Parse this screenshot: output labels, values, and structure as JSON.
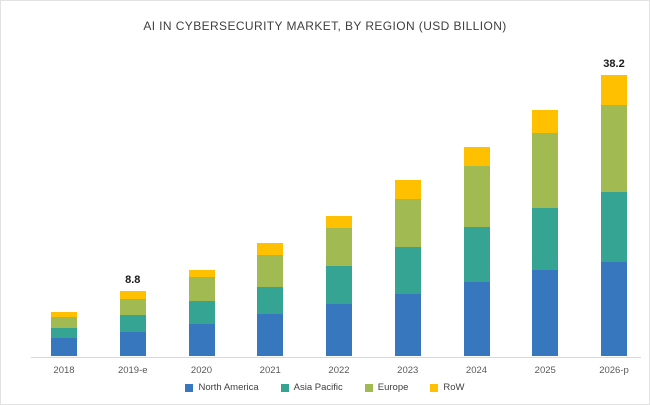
{
  "chart_data": {
    "type": "bar",
    "stacked": true,
    "title": "AI IN CYBERSECURITY MARKET, BY REGION (USD BILLION)",
    "categories": [
      "2018",
      "2019-e",
      "2020",
      "2021",
      "2022",
      "2023",
      "2024",
      "2025",
      "2026-p"
    ],
    "series": [
      {
        "name": "North America",
        "color": "#3777BD",
        "values": [
          2.4,
          3.2,
          4.4,
          5.7,
          7.1,
          8.5,
          10.1,
          11.7,
          12.8
        ]
      },
      {
        "name": "Asia Pacific",
        "color": "#35A492",
        "values": [
          1.4,
          2.4,
          3.1,
          3.7,
          5.1,
          6.4,
          7.5,
          8.4,
          9.5
        ]
      },
      {
        "name": "Europe",
        "color": "#A1BA52",
        "values": [
          1.5,
          2.2,
          3.2,
          4.4,
          5.2,
          6.5,
          8.2,
          10.3,
          11.8
        ]
      },
      {
        "name": "RoW",
        "color": "#FFC000",
        "values": [
          0.7,
          1.0,
          1.0,
          1.6,
          1.7,
          2.5,
          2.7,
          3.1,
          4.1
        ]
      }
    ],
    "totals": [
      6.0,
      8.8,
      11.7,
      15.4,
      19.1,
      23.9,
      28.5,
      33.5,
      38.2
    ],
    "annotations": [
      {
        "category": "2019-e",
        "text": "8.8"
      },
      {
        "category": "2026-p",
        "text": "38.2"
      }
    ],
    "xlabel": "",
    "ylabel": "",
    "ylim": [
      0,
      42
    ],
    "grid": false,
    "legend_position": "bottom",
    "axis_line_color": "#D9D9D9",
    "label_color": "#595959",
    "title_color": "#404040"
  }
}
